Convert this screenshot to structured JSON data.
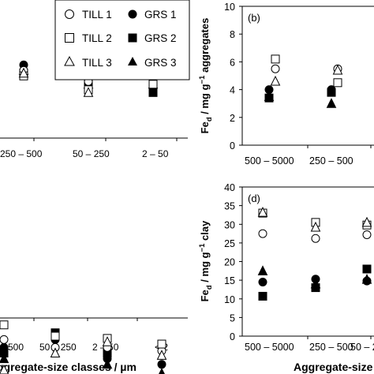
{
  "legend": {
    "entries": [
      {
        "label": "TILL 1",
        "marker": "open-circle"
      },
      {
        "label": "GRS 1",
        "marker": "filled-circle"
      },
      {
        "label": "TILL 2",
        "marker": "open-square"
      },
      {
        "label": "GRS 2",
        "marker": "filled-square"
      },
      {
        "label": "TILL 3",
        "marker": "open-triangle"
      },
      {
        "label": "GRS 3",
        "marker": "filled-triangle"
      }
    ]
  },
  "chart_data": [
    {
      "type": "scatter",
      "panel": "(a)",
      "categories": [
        "250 – 500",
        "50 – 250",
        "2 – 50"
      ],
      "series": [
        {
          "name": "TILL 1",
          "values": [
            2.7,
            2.3,
            2.5
          ]
        },
        {
          "name": "TILL 2",
          "values": [
            2.5,
            2.0,
            2.2
          ]
        },
        {
          "name": "TILL 3",
          "values": [
            2.6,
            1.9,
            2.9
          ]
        },
        {
          "name": "GRS 1",
          "values": [
            2.9,
            2.3,
            2.4
          ]
        },
        {
          "name": "GRS 2",
          "values": [
            2.6,
            2.1,
            1.9
          ]
        },
        {
          "name": "GRS 3",
          "values": [
            2.7,
            2.2,
            2.2
          ]
        }
      ]
    },
    {
      "type": "scatter",
      "panel": "(b)",
      "title": "(b)",
      "ylabel": "Fe_d / mg g^-1 aggregates",
      "ylim": [
        0,
        10
      ],
      "yticks": [
        "0",
        "2",
        "4",
        "6",
        "8",
        "10"
      ],
      "categories": [
        "500 – 5000",
        "250 – 500"
      ],
      "series": [
        {
          "name": "TILL 1",
          "values": [
            5.5,
            5.5
          ]
        },
        {
          "name": "TILL 2",
          "values": [
            6.2,
            4.5
          ]
        },
        {
          "name": "TILL 3",
          "values": [
            4.6,
            5.4
          ]
        },
        {
          "name": "GRS 1",
          "values": [
            4.0,
            4.0
          ]
        },
        {
          "name": "GRS 2",
          "values": [
            3.4,
            3.8
          ]
        },
        {
          "name": "GRS 3",
          "values": [
            3.5,
            3.0
          ]
        }
      ]
    },
    {
      "type": "scatter",
      "panel": "(c)",
      "xlabel": "ggregate-size classes / µm",
      "categories": [
        "– 500",
        "50 – 250",
        "2 – 50",
        "< 2"
      ],
      "series": [
        {
          "name": "TILL 1",
          "values": [
            16.2,
            15.5,
            15.5,
            15.2
          ]
        },
        {
          "name": "TILL 2",
          "values": [
            17.5,
            16.5,
            16.3,
            15.8
          ]
        },
        {
          "name": "TILL 3",
          "values": [
            13.5,
            15.0,
            16.0,
            14.8
          ]
        },
        {
          "name": "GRS 1",
          "values": [
            15.5,
            16.2,
            14.5,
            14.0
          ]
        },
        {
          "name": "GRS 2",
          "values": [
            15.0,
            16.8,
            15.0,
            12.8
          ]
        },
        {
          "name": "GRS 3",
          "values": [
            14.5,
            13.0,
            14.0,
            13.2
          ]
        }
      ]
    },
    {
      "type": "scatter",
      "panel": "(d)",
      "title": "(d)",
      "ylabel": "Fe_d / mg g^-1 clay",
      "xlabel": "Aggregate-size",
      "ylim": [
        0,
        40
      ],
      "yticks": [
        "0",
        "5",
        "10",
        "15",
        "20",
        "25",
        "30",
        "35",
        "40"
      ],
      "categories": [
        "500 – 5000",
        "250 – 500",
        "50 – 2"
      ],
      "series": [
        {
          "name": "TILL 1",
          "values": [
            27.5,
            26.2,
            27.2
          ]
        },
        {
          "name": "TILL 2",
          "values": [
            33.0,
            30.5,
            29.8
          ]
        },
        {
          "name": "TILL 3",
          "values": [
            33.2,
            29.2,
            30.5
          ]
        },
        {
          "name": "GRS 1",
          "values": [
            14.5,
            15.3,
            14.8
          ]
        },
        {
          "name": "GRS 2",
          "values": [
            10.7,
            13.0,
            18.0
          ]
        },
        {
          "name": "GRS 3",
          "values": [
            17.5,
            14.0,
            15.2
          ]
        }
      ]
    }
  ]
}
